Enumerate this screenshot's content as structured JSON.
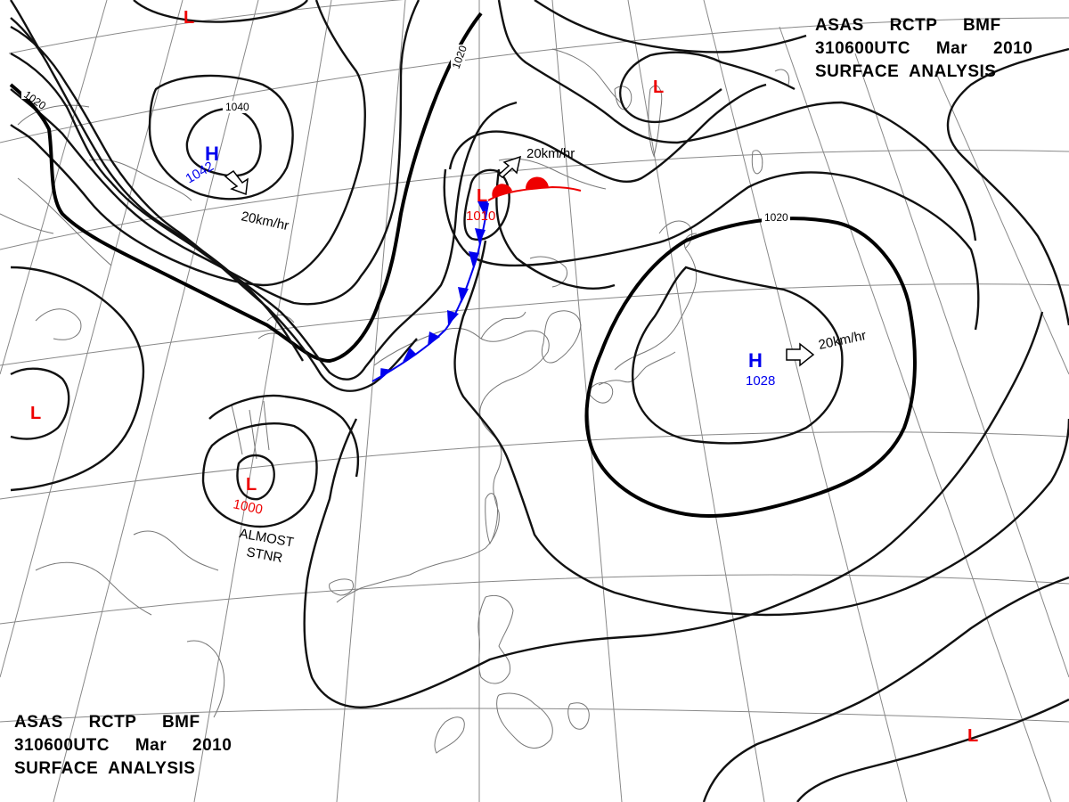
{
  "header": {
    "line1": "ASAS     RCTP     BMF",
    "line2": "310600UTC     Mar     2010",
    "line3": "SURFACE  ANALYSIS"
  },
  "colors": {
    "high": "#0000ee",
    "low": "#ee0000",
    "isobar": "#000000",
    "coast": "#777777",
    "graticule": "#888888"
  },
  "isobar_labels": {
    "a": "1020",
    "b": "1040",
    "c": "1020",
    "d": "1020"
  },
  "pressure_centers": {
    "high_nw": {
      "symbol": "H",
      "value": "1042",
      "motion": "20km/hr"
    },
    "low_front": {
      "symbol": "L",
      "value": "1010",
      "motion": "20km/hr"
    },
    "high_east": {
      "symbol": "H",
      "value": "1028",
      "motion": "20km/hr"
    },
    "low_tibet": {
      "symbol": "L",
      "value": "1000",
      "motion_line1": "ALMOST",
      "motion_line2": "STNR"
    },
    "low_top": {
      "symbol": "L"
    },
    "low_northeast": {
      "symbol": "L"
    },
    "low_west": {
      "symbol": "L"
    },
    "low_southeast": {
      "symbol": "L"
    }
  },
  "fronts": {
    "cold_front_color": "#0000ee",
    "warm_front_color": "#ee0000"
  }
}
